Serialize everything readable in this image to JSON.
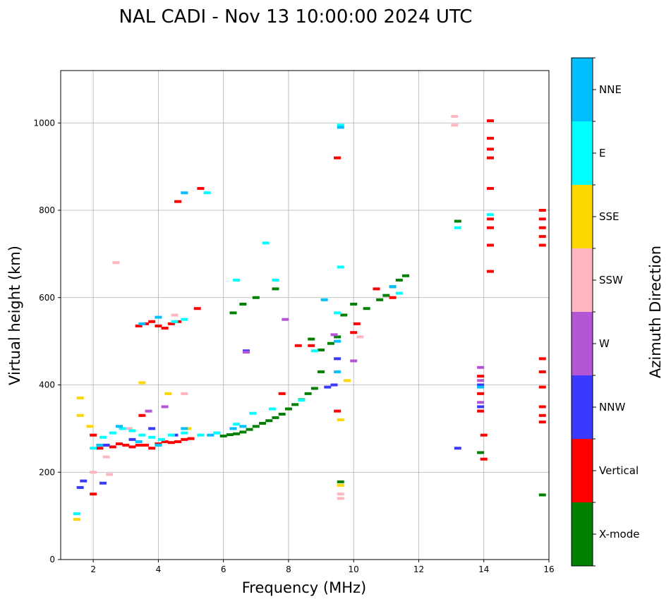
{
  "chart_data": {
    "type": "scatter",
    "title": "NAL CADI - Nov 13 10:00:00 2024 UTC",
    "xlabel": "Frequency (MHz)",
    "ylabel": "Virtual height (km)",
    "xlim": [
      1,
      16
    ],
    "ylim": [
      0,
      1120
    ],
    "xticks": [
      2,
      4,
      6,
      8,
      10,
      12,
      14,
      16
    ],
    "yticks": [
      0,
      200,
      400,
      600,
      800,
      1000
    ],
    "grid": true,
    "colorbar": {
      "label": "Azimuth Direction",
      "categories": [
        {
          "name": "X-mode",
          "color": "#008000"
        },
        {
          "name": "Vertical",
          "color": "#ff0000"
        },
        {
          "name": "NNW",
          "color": "#3a3aff"
        },
        {
          "name": "W",
          "color": "#b455d6"
        },
        {
          "name": "SSW",
          "color": "#ffb6c1"
        },
        {
          "name": "SSE",
          "color": "#ffd700"
        },
        {
          "name": "E",
          "color": "#00ffff"
        },
        {
          "name": "NNE",
          "color": "#00bfff"
        }
      ]
    },
    "series": [
      {
        "name": "X-mode",
        "points": [
          [
            6.0,
            283
          ],
          [
            6.2,
            286
          ],
          [
            6.4,
            288
          ],
          [
            6.6,
            292
          ],
          [
            6.8,
            298
          ],
          [
            7.0,
            305
          ],
          [
            7.2,
            312
          ],
          [
            7.4,
            318
          ],
          [
            7.6,
            325
          ],
          [
            7.8,
            333
          ],
          [
            8.0,
            345
          ],
          [
            8.2,
            355
          ],
          [
            8.4,
            366
          ],
          [
            8.6,
            380
          ],
          [
            8.8,
            392
          ],
          [
            9.0,
            430
          ],
          [
            9.3,
            495
          ],
          [
            9.5,
            510
          ],
          [
            9.7,
            560
          ],
          [
            10.0,
            585
          ],
          [
            10.4,
            575
          ],
          [
            10.8,
            595
          ],
          [
            11.0,
            605
          ],
          [
            11.2,
            625
          ],
          [
            11.4,
            640
          ],
          [
            11.6,
            650
          ],
          [
            6.3,
            565
          ],
          [
            6.6,
            585
          ],
          [
            7.0,
            600
          ],
          [
            7.6,
            620
          ],
          [
            13.2,
            775
          ],
          [
            13.9,
            245
          ],
          [
            15.8,
            148
          ],
          [
            9.6,
            178
          ],
          [
            8.7,
            505
          ],
          [
            9.0,
            480
          ]
        ]
      },
      {
        "name": "Vertical",
        "points": [
          [
            2.0,
            150
          ],
          [
            2.0,
            285
          ],
          [
            2.2,
            255
          ],
          [
            2.4,
            262
          ],
          [
            2.6,
            258
          ],
          [
            2.8,
            265
          ],
          [
            3.0,
            262
          ],
          [
            3.2,
            258
          ],
          [
            3.4,
            262
          ],
          [
            3.6,
            262
          ],
          [
            3.8,
            255
          ],
          [
            4.0,
            265
          ],
          [
            4.2,
            270
          ],
          [
            4.4,
            268
          ],
          [
            4.6,
            270
          ],
          [
            4.8,
            275
          ],
          [
            5.0,
            277
          ],
          [
            3.4,
            535
          ],
          [
            3.6,
            540
          ],
          [
            3.8,
            545
          ],
          [
            4.0,
            535
          ],
          [
            4.2,
            530
          ],
          [
            4.4,
            540
          ],
          [
            4.6,
            545
          ],
          [
            5.2,
            575
          ],
          [
            4.6,
            820
          ],
          [
            5.3,
            850
          ],
          [
            10.0,
            520
          ],
          [
            10.1,
            540
          ],
          [
            9.5,
            920
          ],
          [
            10.7,
            620
          ],
          [
            11.2,
            600
          ],
          [
            14.2,
            1005
          ],
          [
            14.2,
            965
          ],
          [
            14.2,
            940
          ],
          [
            14.2,
            920
          ],
          [
            14.2,
            850
          ],
          [
            14.2,
            780
          ],
          [
            14.2,
            760
          ],
          [
            14.2,
            720
          ],
          [
            14.2,
            660
          ],
          [
            14.0,
            230
          ],
          [
            14.0,
            285
          ],
          [
            13.9,
            420
          ],
          [
            13.9,
            380
          ],
          [
            13.9,
            340
          ],
          [
            15.8,
            800
          ],
          [
            15.8,
            780
          ],
          [
            15.8,
            760
          ],
          [
            15.8,
            740
          ],
          [
            15.8,
            720
          ],
          [
            15.8,
            460
          ],
          [
            15.8,
            430
          ],
          [
            15.8,
            395
          ],
          [
            15.8,
            350
          ],
          [
            15.8,
            330
          ],
          [
            15.8,
            315
          ],
          [
            8.3,
            490
          ],
          [
            8.7,
            490
          ],
          [
            9.5,
            340
          ],
          [
            3.5,
            330
          ],
          [
            7.8,
            380
          ]
        ]
      },
      {
        "name": "NNW",
        "points": [
          [
            1.7,
            180
          ],
          [
            1.6,
            165
          ],
          [
            2.3,
            175
          ],
          [
            2.4,
            262
          ],
          [
            3.2,
            275
          ],
          [
            3.8,
            300
          ],
          [
            4.5,
            285
          ],
          [
            9.2,
            395
          ],
          [
            9.4,
            400
          ],
          [
            9.5,
            460
          ],
          [
            13.9,
            350
          ],
          [
            13.9,
            400
          ],
          [
            13.2,
            255
          ],
          [
            6.7,
            478
          ],
          [
            5.8,
            290
          ]
        ]
      },
      {
        "name": "W",
        "points": [
          [
            6.7,
            475
          ],
          [
            9.4,
            515
          ],
          [
            10.0,
            455
          ],
          [
            13.9,
            440
          ],
          [
            13.9,
            410
          ],
          [
            13.9,
            360
          ],
          [
            3.7,
            340
          ],
          [
            4.2,
            350
          ],
          [
            7.9,
            550
          ]
        ]
      },
      {
        "name": "SSW",
        "points": [
          [
            2.5,
            195
          ],
          [
            2.7,
            680
          ],
          [
            13.1,
            1015
          ],
          [
            13.1,
            995
          ],
          [
            9.6,
            150
          ],
          [
            9.6,
            140
          ],
          [
            10.2,
            510
          ],
          [
            4.8,
            380
          ],
          [
            2.4,
            235
          ],
          [
            3.1,
            300
          ],
          [
            4.5,
            560
          ],
          [
            2.0,
            200
          ]
        ]
      },
      {
        "name": "SSE",
        "points": [
          [
            1.5,
            92
          ],
          [
            1.6,
            330
          ],
          [
            1.6,
            370
          ],
          [
            9.6,
            320
          ],
          [
            9.6,
            170
          ],
          [
            3.5,
            405
          ],
          [
            4.3,
            380
          ],
          [
            4.9,
            300
          ],
          [
            1.9,
            305
          ],
          [
            9.8,
            410
          ]
        ]
      },
      {
        "name": "E",
        "points": [
          [
            1.5,
            105
          ],
          [
            2.0,
            255
          ],
          [
            2.3,
            280
          ],
          [
            2.6,
            290
          ],
          [
            2.9,
            300
          ],
          [
            3.2,
            295
          ],
          [
            3.5,
            285
          ],
          [
            3.8,
            280
          ],
          [
            4.1,
            275
          ],
          [
            4.4,
            285
          ],
          [
            4.8,
            290
          ],
          [
            5.3,
            285
          ],
          [
            5.8,
            290
          ],
          [
            6.4,
            310
          ],
          [
            6.9,
            335
          ],
          [
            7.5,
            345
          ],
          [
            4.5,
            545
          ],
          [
            4.8,
            550
          ],
          [
            5.5,
            840
          ],
          [
            9.6,
            995
          ],
          [
            9.6,
            670
          ],
          [
            13.2,
            760
          ],
          [
            14.2,
            790
          ],
          [
            6.4,
            640
          ],
          [
            7.6,
            640
          ],
          [
            7.3,
            725
          ],
          [
            8.4,
            365
          ],
          [
            8.8,
            478
          ],
          [
            9.5,
            565
          ],
          [
            11.4,
            610
          ]
        ]
      },
      {
        "name": "NNE",
        "points": [
          [
            2.2,
            262
          ],
          [
            2.8,
            305
          ],
          [
            3.4,
            270
          ],
          [
            4.0,
            262
          ],
          [
            4.8,
            300
          ],
          [
            5.6,
            285
          ],
          [
            6.3,
            300
          ],
          [
            6.6,
            305
          ],
          [
            3.5,
            540
          ],
          [
            4.0,
            555
          ],
          [
            9.6,
            990
          ],
          [
            9.5,
            500
          ],
          [
            9.5,
            430
          ],
          [
            11.2,
            625
          ],
          [
            9.1,
            595
          ],
          [
            4.8,
            840
          ],
          [
            13.9,
            395
          ]
        ]
      }
    ]
  }
}
